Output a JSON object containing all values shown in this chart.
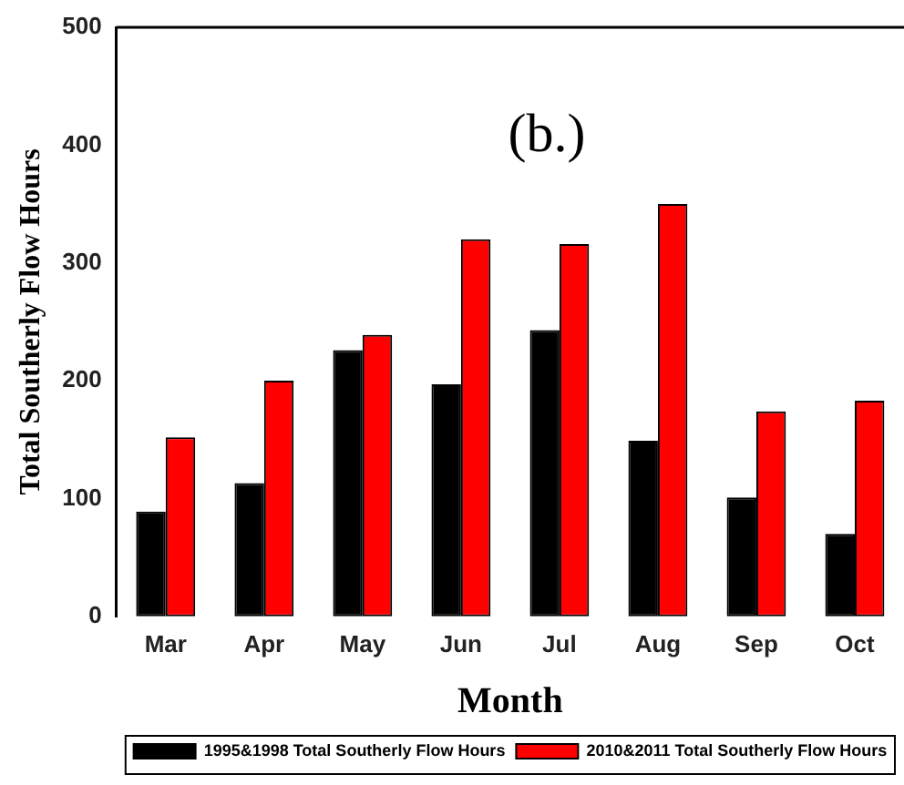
{
  "chart_data": {
    "type": "bar",
    "xlabel": "Month",
    "ylabel": "Total Southerly Flow Hours",
    "annotations": [
      "(b.)"
    ],
    "categories": [
      "Mar",
      "Apr",
      "May",
      "Jun",
      "Jul",
      "Aug",
      "Sep",
      "Oct"
    ],
    "series": [
      {
        "name": "1995&1998 Total Southerly Flow Hours",
        "color": "#000000",
        "values": [
          89,
          113,
          226,
          197,
          243,
          149,
          101,
          70
        ]
      },
      {
        "name": "2010&2011 Total Southerly Flow Hours",
        "color": "#ff0000",
        "values": [
          152,
          200,
          239,
          320,
          316,
          350,
          174,
          183
        ]
      }
    ],
    "ylim": [
      0,
      500
    ],
    "yticks": [
      0,
      100,
      200,
      300,
      400,
      500
    ],
    "grid": false,
    "legend": "bottom"
  }
}
